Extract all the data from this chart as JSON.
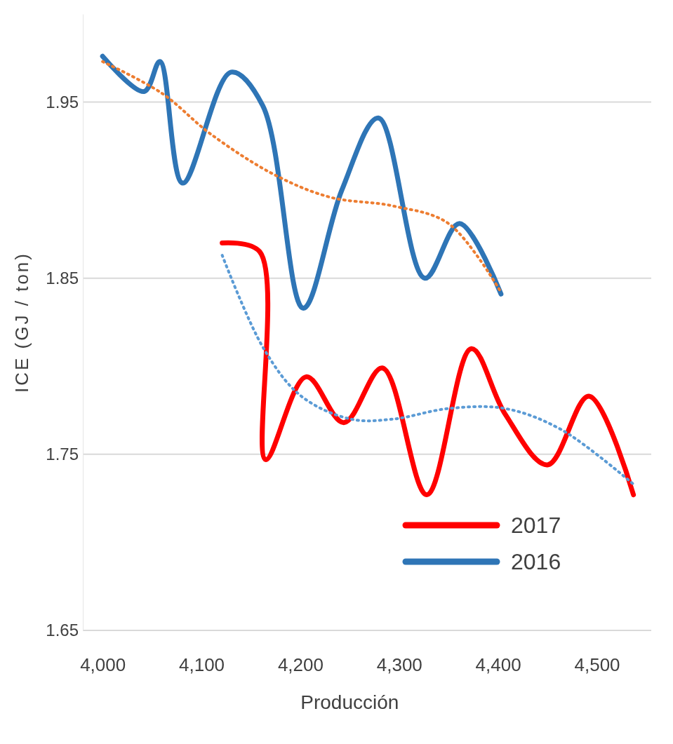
{
  "chart_data": {
    "type": "line",
    "xlabel": "Producción",
    "ylabel": "ICE (GJ / ton)",
    "xlim": [
      3980,
      4555
    ],
    "ylim": [
      1.65,
      2.0
    ],
    "xticks": [
      {
        "value": 4000,
        "label": "4,000"
      },
      {
        "value": 4100,
        "label": "4,100"
      },
      {
        "value": 4200,
        "label": "4,200"
      },
      {
        "value": 4300,
        "label": "4,300"
      },
      {
        "value": 4400,
        "label": "4,400"
      },
      {
        "value": 4500,
        "label": "4,500"
      }
    ],
    "yticks": [
      1.65,
      1.75,
      1.85,
      1.95
    ],
    "grid": "y",
    "legend": "bottom right",
    "marker": "none",
    "series": [
      {
        "name": "2017",
        "color": "#ff0000",
        "x": [
          4121,
          4159,
          4165,
          4206,
          4244,
          4283,
          4328,
          4373,
          4407,
          4450,
          4492,
          4537
        ],
        "values": [
          1.87,
          1.865,
          1.747,
          1.794,
          1.768,
          1.799,
          1.727,
          1.81,
          1.773,
          1.744,
          1.783,
          1.727
        ]
      },
      {
        "name": "2016",
        "color": "#2e75b6",
        "x": [
          4000,
          4042,
          4058,
          4081,
          4130,
          4162,
          4203,
          4242,
          4279,
          4326,
          4361,
          4403
        ],
        "values": [
          1.976,
          1.956,
          1.973,
          1.904,
          1.967,
          1.948,
          1.833,
          1.9,
          1.941,
          1.85,
          1.881,
          1.841
        ]
      },
      {
        "color": "#ed7d31",
        "line_style": "dotted",
        "x": [
          4000,
          4060,
          4109,
          4173,
          4230,
          4294,
          4350,
          4403
        ],
        "values": [
          1.973,
          1.955,
          1.932,
          1.909,
          1.896,
          1.891,
          1.881,
          1.842
        ]
      },
      {
        "color": "#5b9bd5",
        "line_style": "dotted",
        "x": [
          4121,
          4163,
          4201,
          4251,
          4294,
          4350,
          4407,
          4464,
          4537
        ],
        "values": [
          1.863,
          1.81,
          1.783,
          1.77,
          1.77,
          1.776,
          1.776,
          1.764,
          1.733
        ]
      }
    ]
  }
}
